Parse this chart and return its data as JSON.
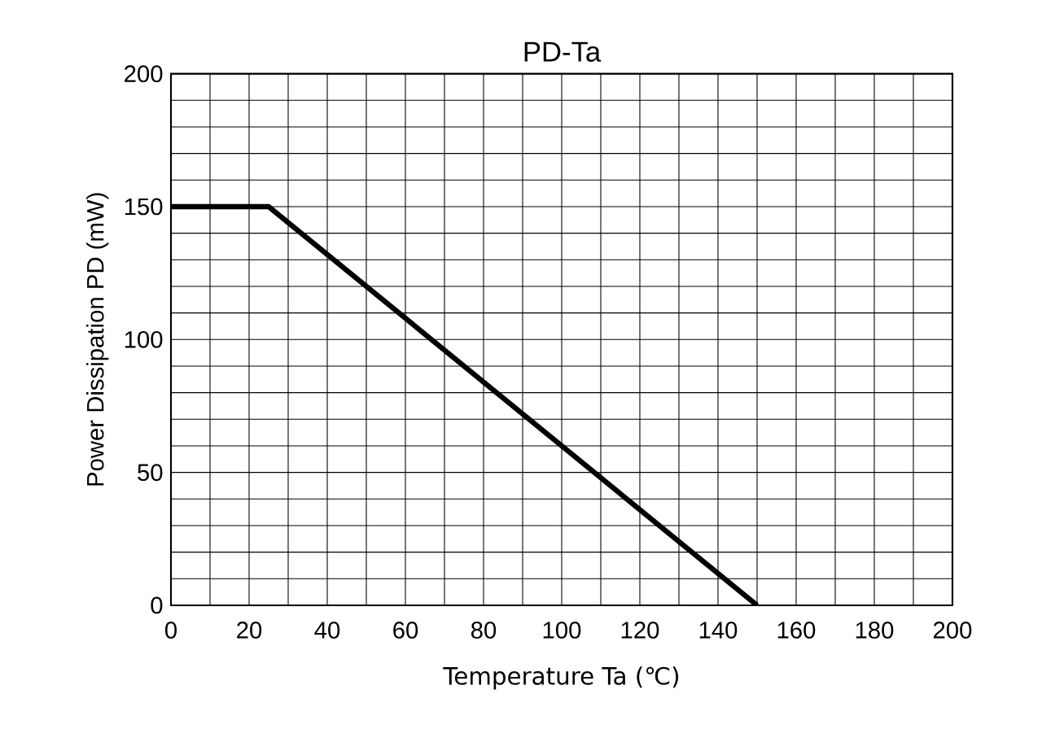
{
  "chart_data": {
    "type": "line",
    "title": "PD-Ta",
    "xlabel": "Temperature Ta (℃)",
    "ylabel": "Power Dissipation PD (mW)",
    "x": [
      0,
      25,
      150
    ],
    "series": [
      {
        "color": "#000000",
        "values": [
          150,
          150,
          0
        ]
      }
    ],
    "xlim": [
      0,
      200
    ],
    "ylim": [
      0,
      200
    ],
    "xticks": [
      0,
      {
        "value": 10,
        "label": null
      },
      20,
      {
        "value": 30,
        "label": null
      },
      40,
      {
        "value": 50,
        "label": null
      },
      60,
      {
        "value": 70,
        "label": null
      },
      80,
      {
        "value": 90,
        "label": null
      },
      100,
      {
        "value": 110,
        "label": null
      },
      120,
      {
        "value": 130,
        "label": null
      },
      140,
      {
        "value": 150,
        "label": null
      },
      160,
      {
        "value": 170,
        "label": null
      },
      180,
      {
        "value": 190,
        "label": null
      },
      200
    ],
    "yticks": [
      0,
      {
        "value": 10,
        "label": null
      },
      {
        "value": 20,
        "label": null
      },
      {
        "value": 30,
        "label": null
      },
      {
        "value": 40,
        "label": null
      },
      50,
      {
        "value": 60,
        "label": null
      },
      {
        "value": 70,
        "label": null
      },
      {
        "value": 80,
        "label": null
      },
      {
        "value": 90,
        "label": null
      },
      100,
      {
        "value": 110,
        "label": null
      },
      {
        "value": 120,
        "label": null
      },
      {
        "value": 130,
        "label": null
      },
      {
        "value": 140,
        "label": null
      },
      150,
      {
        "value": 160,
        "label": null
      },
      {
        "value": 170,
        "label": null
      },
      {
        "value": 180,
        "label": null
      },
      {
        "value": 190,
        "label": null
      },
      200
    ],
    "grid": true,
    "line_style": "solid"
  }
}
